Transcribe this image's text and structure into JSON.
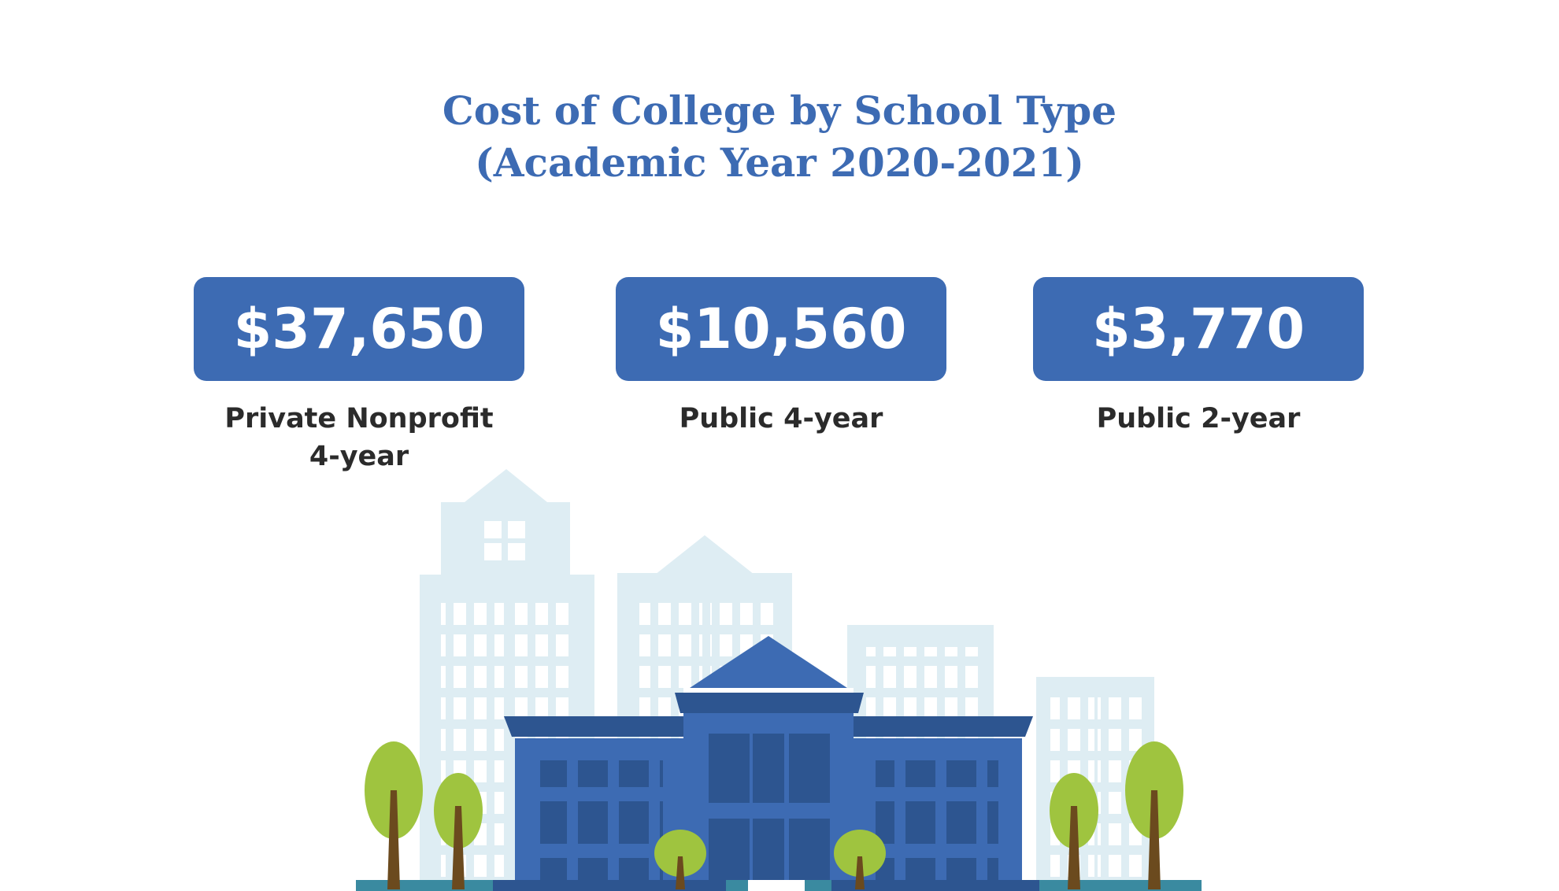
{
  "title": {
    "line1": "Cost of College by School Type",
    "line2": "(Academic Year 2020-2021)"
  },
  "costs": [
    {
      "amount": "$37,650",
      "label_line1": "Private Nonprofit",
      "label_line2": "4-year"
    },
    {
      "amount": "$10,560",
      "label_line1": "Public 4-year",
      "label_line2": ""
    },
    {
      "amount": "$3,770",
      "label_line1": "Public 2-year",
      "label_line2": ""
    }
  ],
  "colors": {
    "accent": "#3d6bb3",
    "label_text": "#2b2b2b",
    "bg_buildings": "#deedf3",
    "main_building": "#3d6bb3",
    "main_building_dark": "#2d5590",
    "tree_leaves": "#9fc43f",
    "tree_trunk": "#6b4a1e",
    "ground": "#3a8aa0"
  },
  "icons": [
    "city-skyline-illustration",
    "college-building-icon",
    "tree-icon"
  ]
}
